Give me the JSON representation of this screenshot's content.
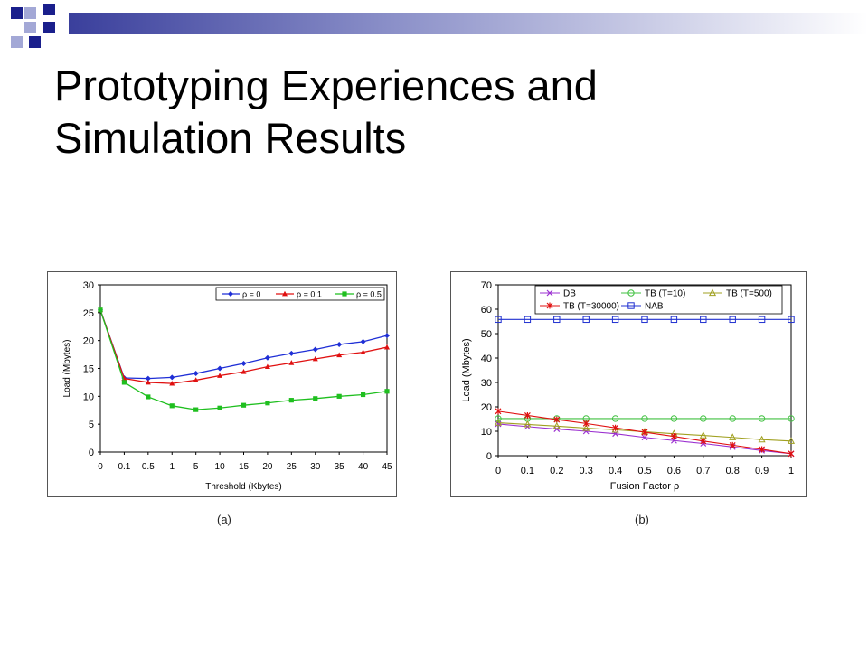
{
  "slide": {
    "title_line1": "Prototyping Experiences and",
    "title_line2": "Simulation Results",
    "accent_color": "#1a1f8c",
    "accent_light": "#a3a8d6",
    "bar_gradient_start": "#3a3f9c",
    "bar_gradient_end": "#ffffff"
  },
  "figures": {
    "a": {
      "caption": "(a)"
    },
    "b": {
      "caption": "(b)"
    }
  },
  "chart_data": [
    {
      "type": "line",
      "xlabel": "Threshold (Kbytes)",
      "ylabel": "Load (Mbytes)",
      "ylim": [
        0,
        30
      ],
      "yticks": [
        0,
        5,
        10,
        15,
        20,
        25,
        30
      ],
      "categories": [
        "0",
        "0.1",
        "0.5",
        "1",
        "5",
        "10",
        "15",
        "20",
        "25",
        "30",
        "35",
        "40",
        "45"
      ],
      "legend_placement": "top-right",
      "series": [
        {
          "name": "ρ = 0",
          "color": "#1f2fd6",
          "marker": "diamond",
          "values": [
            25.5,
            13.3,
            13.2,
            13.4,
            14.1,
            15.0,
            15.9,
            16.9,
            17.7,
            18.4,
            19.3,
            19.8,
            20.9
          ]
        },
        {
          "name": "ρ = 0.1",
          "color": "#e01010",
          "marker": "triangle",
          "values": [
            25.5,
            13.2,
            12.5,
            12.3,
            12.9,
            13.7,
            14.4,
            15.3,
            16.0,
            16.7,
            17.4,
            17.9,
            18.8
          ]
        },
        {
          "name": "ρ = 0.5",
          "color": "#1fbf1f",
          "marker": "square",
          "values": [
            25.5,
            12.5,
            9.9,
            8.3,
            7.6,
            7.9,
            8.4,
            8.8,
            9.3,
            9.6,
            10.0,
            10.3,
            10.9
          ]
        }
      ]
    },
    {
      "type": "line",
      "xlabel": "Fusion Factor ρ",
      "ylabel": "Load (Mbytes)",
      "ylim": [
        0,
        70
      ],
      "yticks": [
        0,
        10,
        20,
        30,
        40,
        50,
        60,
        70
      ],
      "x": [
        0,
        0.1,
        0.2,
        0.3,
        0.4,
        0.5,
        0.6,
        0.7,
        0.8,
        0.9,
        1
      ],
      "xticklabels": [
        "0",
        "0.1",
        "0.2",
        "0.3",
        "0.4",
        "0.5",
        "0.6",
        "0.7",
        "0.8",
        "0.9",
        "1"
      ],
      "legend_placement": "top",
      "series": [
        {
          "name": "DB",
          "color": "#9b30d0",
          "marker": "x",
          "values": [
            13.0,
            11.9,
            10.9,
            10.0,
            9.0,
            7.5,
            6.2,
            5.0,
            3.6,
            2.1,
            0.8
          ]
        },
        {
          "name": "TB (T=10)",
          "color": "#40c040",
          "marker": "circle",
          "values": [
            15.2,
            15.2,
            15.2,
            15.2,
            15.2,
            15.2,
            15.2,
            15.2,
            15.2,
            15.2,
            15.2
          ]
        },
        {
          "name": "TB (T=500)",
          "color": "#a0a020",
          "marker": "triangle",
          "values": [
            13.5,
            12.8,
            12.1,
            11.3,
            10.6,
            9.8,
            9.0,
            8.3,
            7.5,
            6.6,
            6.0
          ]
        },
        {
          "name": "TB (T=30000)",
          "color": "#e01010",
          "marker": "star",
          "values": [
            18.2,
            16.5,
            14.8,
            13.2,
            11.4,
            9.6,
            7.9,
            6.0,
            4.3,
            2.6,
            0.8
          ]
        },
        {
          "name": "NAB",
          "color": "#2030d0",
          "marker": "square-open",
          "values": [
            55.8,
            55.8,
            55.8,
            55.8,
            55.8,
            55.8,
            55.8,
            55.8,
            55.8,
            55.8,
            55.8
          ]
        }
      ]
    }
  ]
}
